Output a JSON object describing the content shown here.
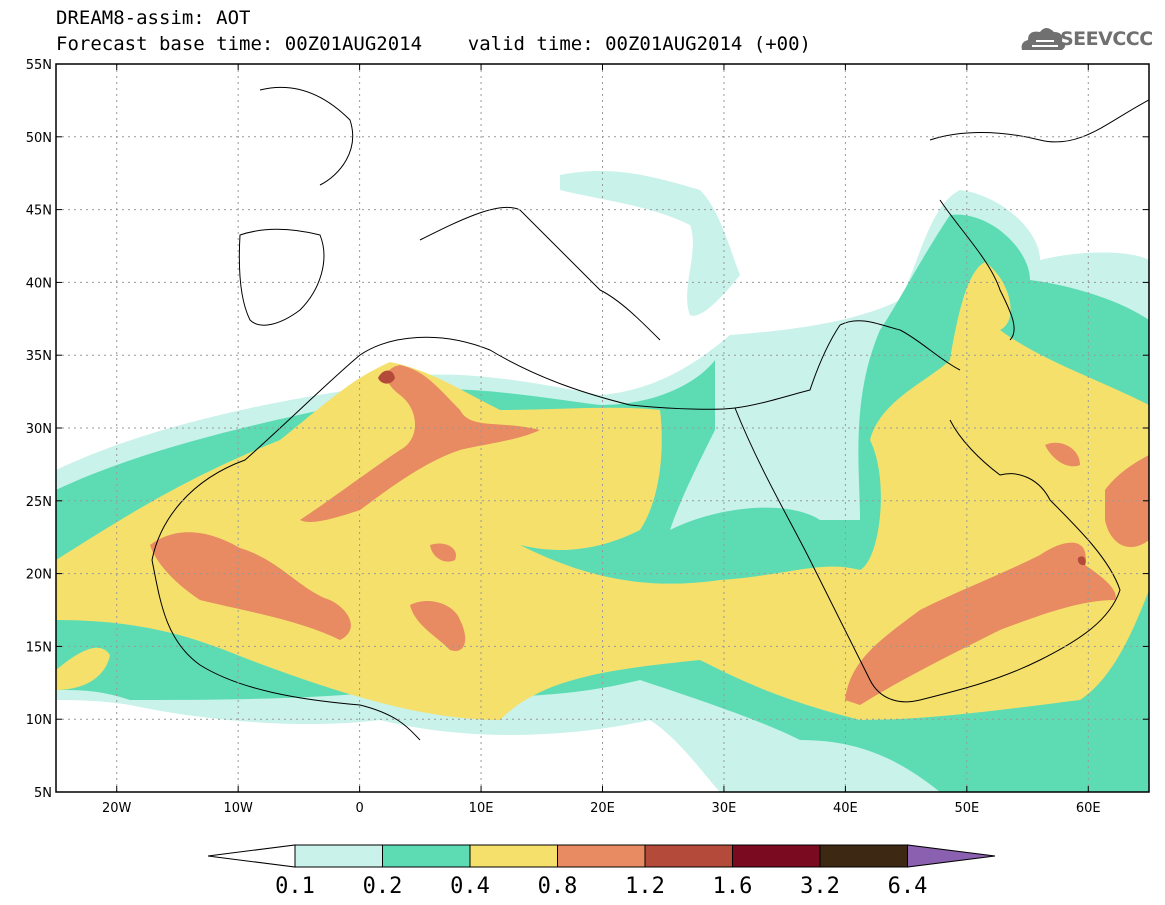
{
  "header": {
    "line1": "DREAM8-assim: AOT",
    "line2": "Forecast base time: 00Z01AUG2014    valid time: 00Z01AUG2014 (+00)"
  },
  "logo": {
    "icon": "cloud-icon",
    "text": "SEEVCCC"
  },
  "map": {
    "lon_range": [
      -25,
      65
    ],
    "lat_range": [
      5,
      55
    ],
    "lon_ticks": [
      -20,
      -10,
      0,
      10,
      20,
      30,
      40,
      50,
      60
    ],
    "lat_ticks": [
      5,
      10,
      15,
      20,
      25,
      30,
      35,
      40,
      45,
      50,
      55
    ],
    "lon_labels": [
      "20W",
      "10W",
      "0",
      "10E",
      "20E",
      "30E",
      "40E",
      "50E",
      "60E"
    ],
    "lat_labels": [
      "5N",
      "10N",
      "15N",
      "20N",
      "25N",
      "30N",
      "35N",
      "40N",
      "45N",
      "50N",
      "55N"
    ],
    "grid": "dotted"
  },
  "colorbar": {
    "boundaries": [
      "0.1",
      "0.2",
      "0.4",
      "0.8",
      "1.2",
      "1.6",
      "3.2",
      "6.4"
    ],
    "colors": [
      "#ffffff",
      "#c8f2ea",
      "#5ddcb4",
      "#f5e06c",
      "#e88a62",
      "#b44a3a",
      "#7a0a20",
      "#3d2814",
      "#8c60b0"
    ]
  }
}
